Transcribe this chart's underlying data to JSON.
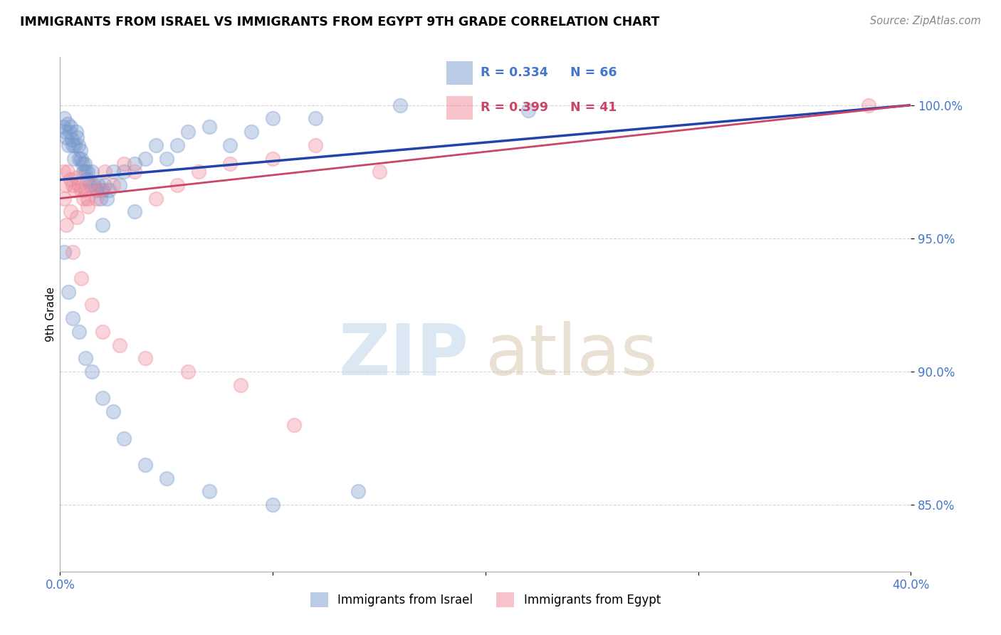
{
  "title": "IMMIGRANTS FROM ISRAEL VS IMMIGRANTS FROM EGYPT 9TH GRADE CORRELATION CHART",
  "source": "Source: ZipAtlas.com",
  "ylabel": "9th Grade",
  "xlim": [
    0.0,
    40.0
  ],
  "ylim": [
    82.5,
    101.8
  ],
  "y_ticks": [
    85.0,
    90.0,
    95.0,
    100.0
  ],
  "y_tick_labels": [
    "85.0%",
    "90.0%",
    "95.0%",
    "100.0%"
  ],
  "grid_color": "#cccccc",
  "background_color": "#ffffff",
  "israel_color": "#7799cc",
  "egypt_color": "#ee8899",
  "israel_line_color": "#2244aa",
  "egypt_line_color": "#cc4466",
  "legend_label_israel": "Immigrants from Israel",
  "legend_label_egypt": "Immigrants from Egypt",
  "israel_x": [
    0.15,
    0.2,
    0.25,
    0.3,
    0.35,
    0.4,
    0.45,
    0.5,
    0.55,
    0.6,
    0.65,
    0.7,
    0.75,
    0.8,
    0.85,
    0.9,
    0.95,
    1.0,
    1.05,
    1.1,
    1.15,
    1.2,
    1.25,
    1.3,
    1.4,
    1.5,
    1.6,
    1.7,
    1.8,
    1.9,
    2.0,
    2.1,
    2.2,
    2.3,
    2.5,
    2.8,
    3.0,
    3.5,
    4.0,
    4.5,
    5.0,
    5.5,
    6.0,
    7.0,
    8.0,
    9.0,
    10.0,
    12.0,
    16.0,
    22.0,
    0.2,
    0.4,
    0.6,
    0.9,
    1.2,
    1.5,
    2.0,
    2.5,
    3.0,
    4.0,
    5.0,
    7.0,
    10.0,
    14.0,
    2.0,
    3.5
  ],
  "israel_y": [
    99.2,
    99.5,
    99.0,
    98.8,
    99.3,
    98.5,
    99.0,
    99.2,
    98.7,
    98.5,
    98.0,
    98.5,
    99.0,
    98.8,
    98.5,
    98.0,
    98.3,
    98.0,
    97.8,
    97.5,
    97.8,
    97.5,
    97.2,
    97.5,
    97.0,
    97.5,
    97.0,
    96.8,
    97.0,
    96.5,
    96.8,
    97.0,
    96.5,
    96.8,
    97.5,
    97.0,
    97.5,
    97.8,
    98.0,
    98.5,
    98.0,
    98.5,
    99.0,
    99.2,
    98.5,
    99.0,
    99.5,
    99.5,
    100.0,
    99.8,
    94.5,
    93.0,
    92.0,
    91.5,
    90.5,
    90.0,
    89.0,
    88.5,
    87.5,
    86.5,
    86.0,
    85.5,
    85.0,
    85.5,
    95.5,
    96.0
  ],
  "egypt_x": [
    0.15,
    0.25,
    0.35,
    0.5,
    0.6,
    0.7,
    0.8,
    0.9,
    1.0,
    1.1,
    1.2,
    1.3,
    1.5,
    1.7,
    1.9,
    2.1,
    2.5,
    3.0,
    3.5,
    4.5,
    5.5,
    6.5,
    8.0,
    10.0,
    12.0,
    15.0,
    0.3,
    0.6,
    1.0,
    1.5,
    2.0,
    2.8,
    4.0,
    6.0,
    8.5,
    11.0,
    0.2,
    0.5,
    0.8,
    1.3,
    38.0
  ],
  "egypt_y": [
    97.5,
    97.0,
    97.5,
    97.2,
    97.0,
    96.8,
    97.3,
    97.0,
    96.8,
    96.5,
    96.8,
    96.5,
    97.0,
    96.5,
    96.8,
    97.5,
    97.0,
    97.8,
    97.5,
    96.5,
    97.0,
    97.5,
    97.8,
    98.0,
    98.5,
    97.5,
    95.5,
    94.5,
    93.5,
    92.5,
    91.5,
    91.0,
    90.5,
    90.0,
    89.5,
    88.0,
    96.5,
    96.0,
    95.8,
    96.2,
    100.0
  ]
}
